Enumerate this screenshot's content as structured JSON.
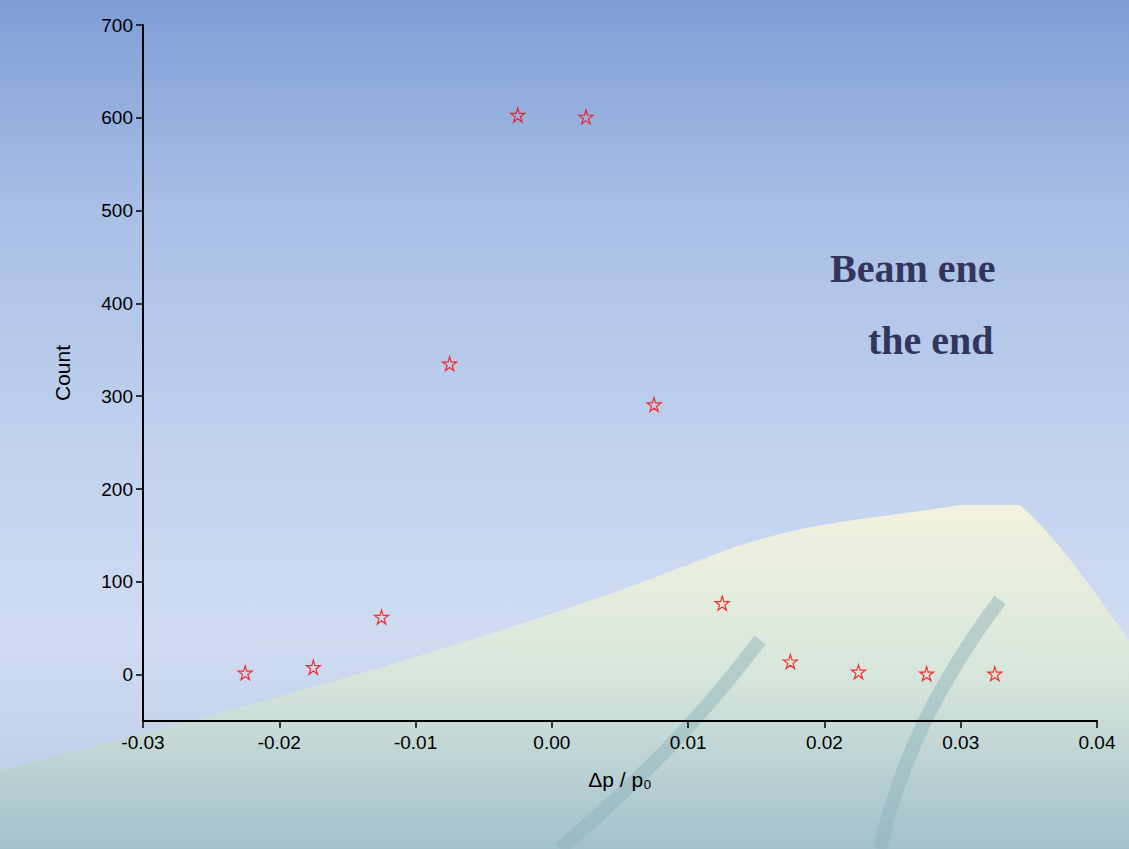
{
  "chart_data": {
    "type": "scatter",
    "xlabel": "Δp / p₀",
    "ylabel": "Count",
    "annotations": [
      "Beam ene",
      "the end"
    ],
    "x": [
      -0.0225,
      -0.0175,
      -0.0125,
      -0.0075,
      -0.0025,
      0.0025,
      0.0075,
      0.0125,
      0.0175,
      0.0225,
      0.0275,
      0.0325
    ],
    "values": [
      2,
      8,
      62,
      335,
      603,
      601,
      291,
      77,
      14,
      3,
      1,
      1
    ],
    "color": "#ff0000",
    "marker": "star",
    "xlim": [
      -0.03,
      0.04
    ],
    "xticks": [
      -0.03,
      -0.02,
      -0.01,
      {
        "value": 0,
        "label": "0.00"
      },
      0.01,
      0.02,
      0.03,
      0.04
    ],
    "ylim": [
      -50,
      700
    ],
    "yticks": [
      0,
      100,
      200,
      300,
      400,
      500,
      600,
      700
    ],
    "grid": false
  }
}
